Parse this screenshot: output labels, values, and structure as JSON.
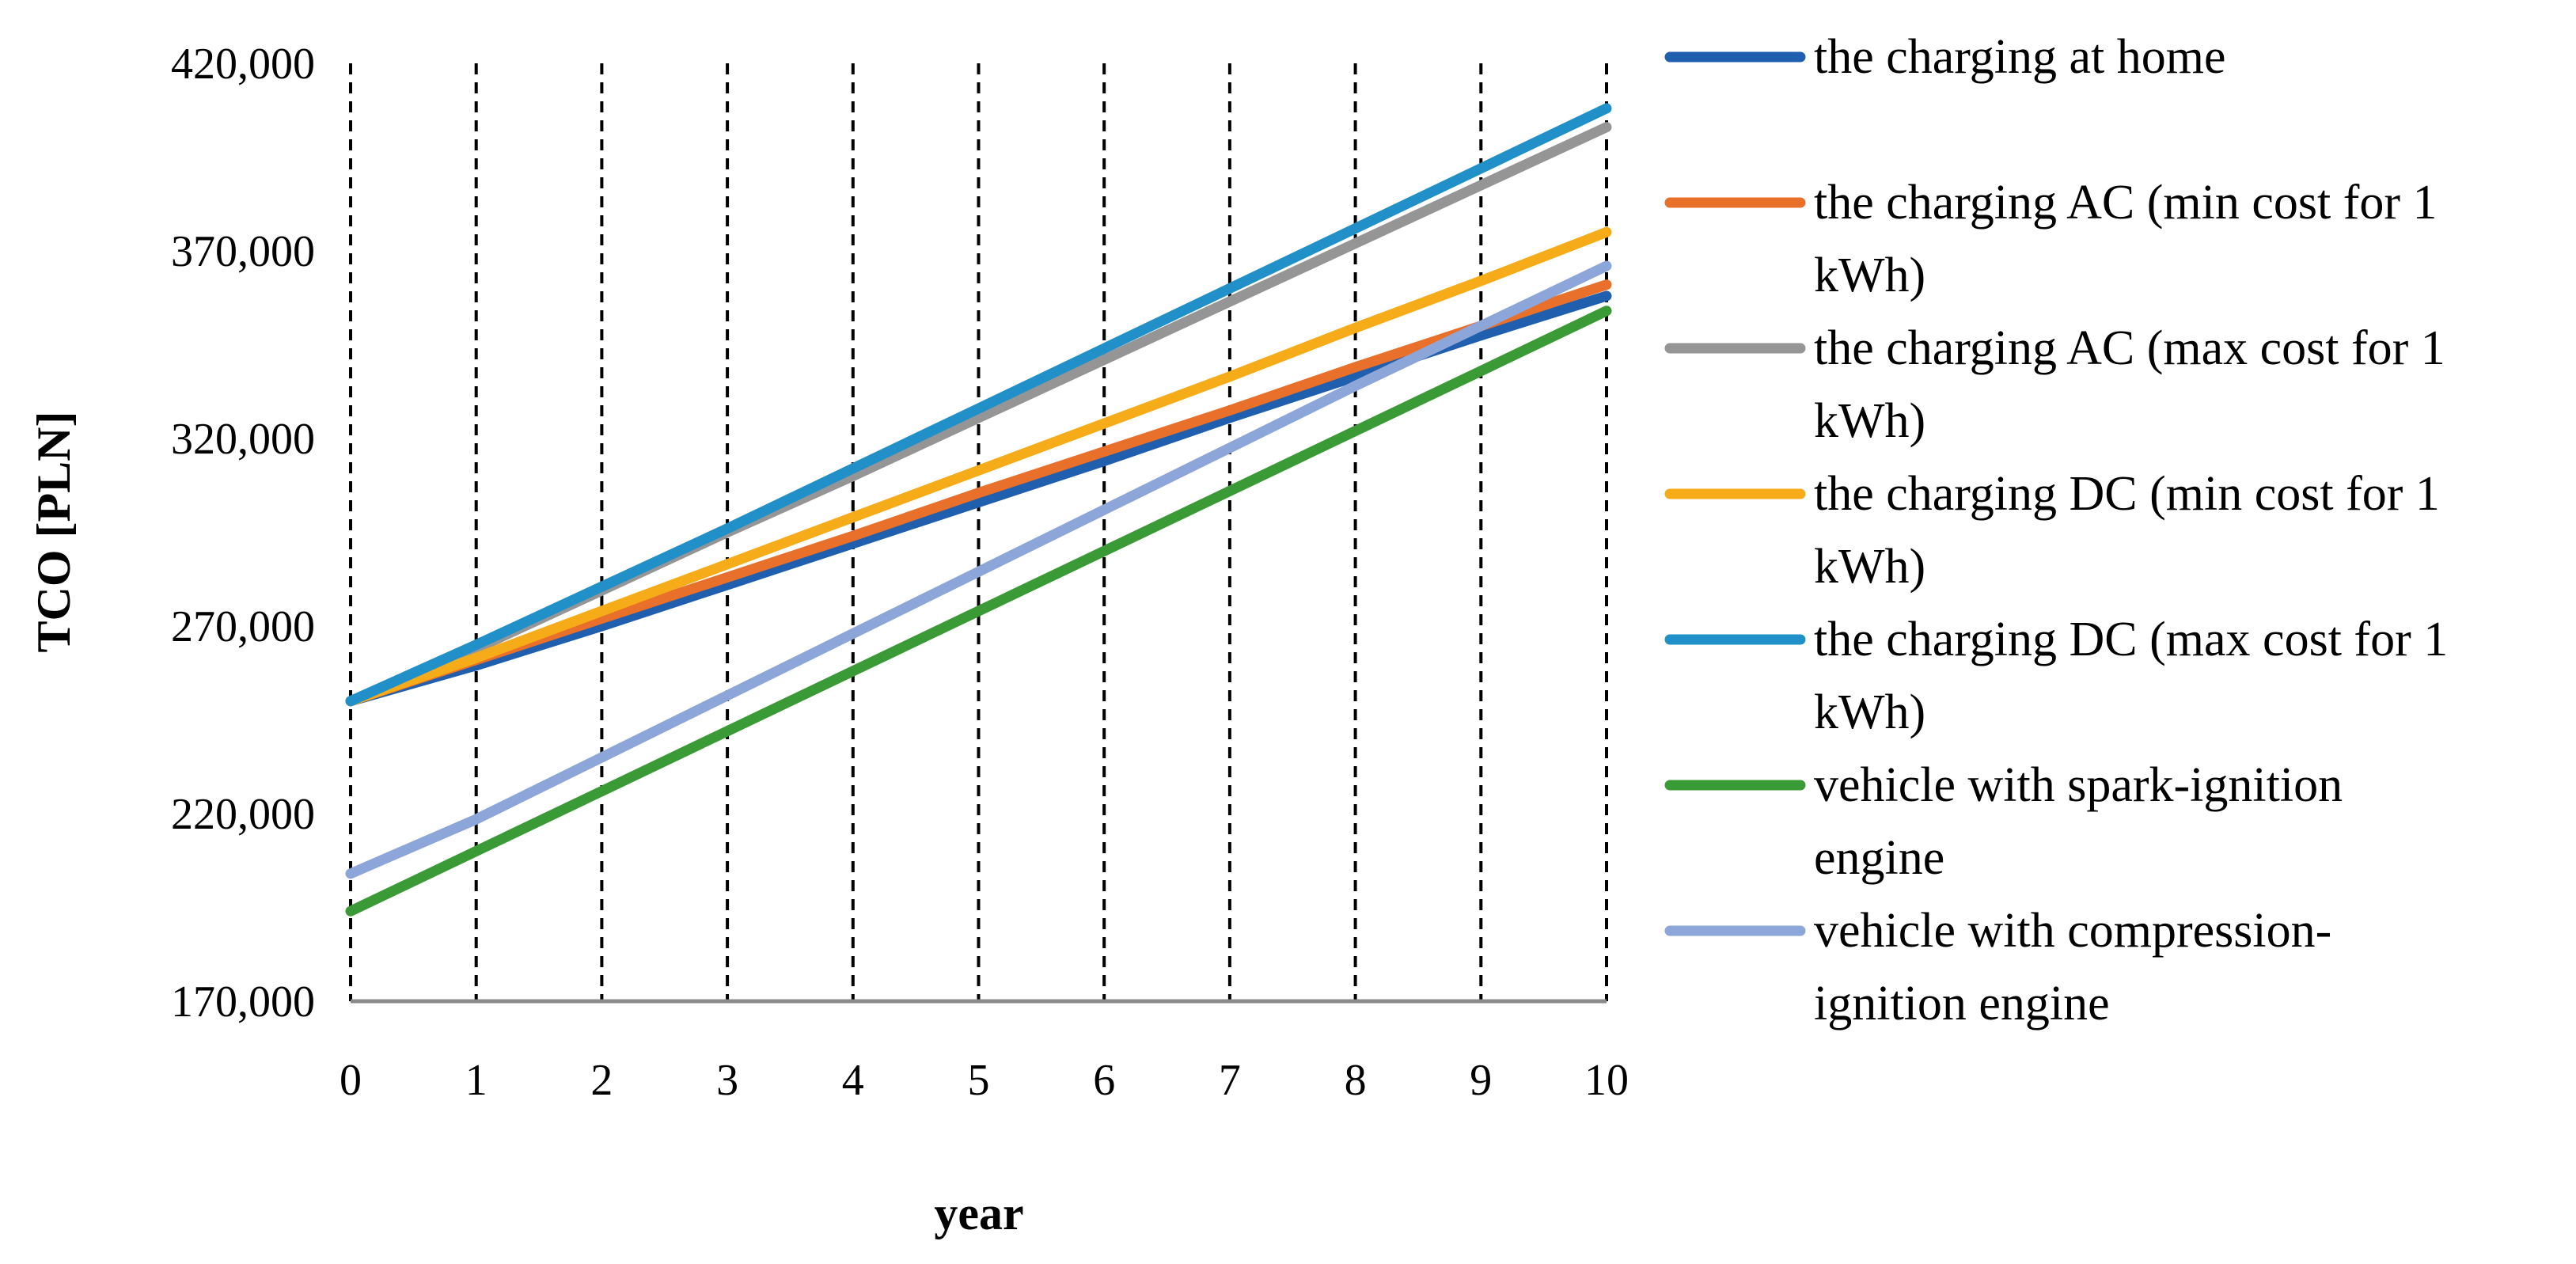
{
  "chart_data": {
    "type": "line",
    "title": "",
    "xlabel": "year",
    "ylabel": "TCO [PLN]",
    "x": [
      0,
      1,
      2,
      3,
      4,
      5,
      6,
      7,
      8,
      9,
      10
    ],
    "xlim": [
      0,
      10
    ],
    "ylim": [
      170000,
      420000
    ],
    "y_ticks": [
      170000,
      220000,
      270000,
      320000,
      370000,
      420000
    ],
    "y_tick_labels": [
      "170,000",
      "220,000",
      "270,000",
      "320,000",
      "370,000",
      "420,000"
    ],
    "x_tick_labels": [
      "0",
      "1",
      "2",
      "3",
      "4",
      "5",
      "6",
      "7",
      "8",
      "9",
      "10"
    ],
    "grid": "vertical dashed",
    "legend_position": "right",
    "series": [
      {
        "name": "the charging at home",
        "legend_lines": [
          "the charging at home"
        ],
        "color": "#1F5FAD",
        "values": [
          250000,
          259500,
          270000,
          281000,
          292000,
          303000,
          314000,
          325500,
          336500,
          347500,
          358000
        ]
      },
      {
        "name": "the charging AC (min cost for 1 kWh)",
        "legend_lines": [
          "the charging AC (min cost for 1",
          "kWh)"
        ],
        "color": "#E8702A",
        "values": [
          250000,
          261000,
          272000,
          283000,
          294000,
          305500,
          316500,
          327500,
          339000,
          350000,
          361000
        ]
      },
      {
        "name": "the charging AC (max cost for 1 kWh)",
        "legend_lines": [
          "the charging AC (max cost for 1",
          "kWh)"
        ],
        "color": "#959595",
        "values": [
          250000,
          264000,
          279500,
          295000,
          310000,
          325500,
          341000,
          356500,
          372000,
          387500,
          403000
        ]
      },
      {
        "name": "the charging DC (min cost for 1 kWh)",
        "legend_lines": [
          "the charging DC (min cost for 1",
          "kWh)"
        ],
        "color": "#F5AC18",
        "values": [
          250000,
          261500,
          274000,
          286500,
          299000,
          311500,
          324000,
          336500,
          349500,
          362000,
          375000
        ]
      },
      {
        "name": "the charging DC (max cost for 1 kWh)",
        "legend_lines": [
          "the charging DC (max cost for 1",
          "kWh)"
        ],
        "color": "#2190C9",
        "values": [
          250000,
          265000,
          280500,
          296000,
          312000,
          328000,
          344000,
          360000,
          376000,
          392000,
          408000
        ]
      },
      {
        "name": "vehicle with spark-ignition engine",
        "legend_lines": [
          "vehicle with spark-ignition",
          "engine"
        ],
        "color": "#3A9A35",
        "values": [
          194000,
          210000,
          226000,
          242000,
          258000,
          274000,
          290000,
          306000,
          322000,
          338000,
          354000
        ]
      },
      {
        "name": "vehicle with compression-ignition engine",
        "legend_lines": [
          "vehicle with compression-",
          "ignition engine"
        ],
        "color": "#8DA6D9",
        "values": [
          204000,
          218500,
          235000,
          251500,
          268000,
          284500,
          301000,
          317500,
          334000,
          350000,
          366000
        ]
      }
    ]
  }
}
